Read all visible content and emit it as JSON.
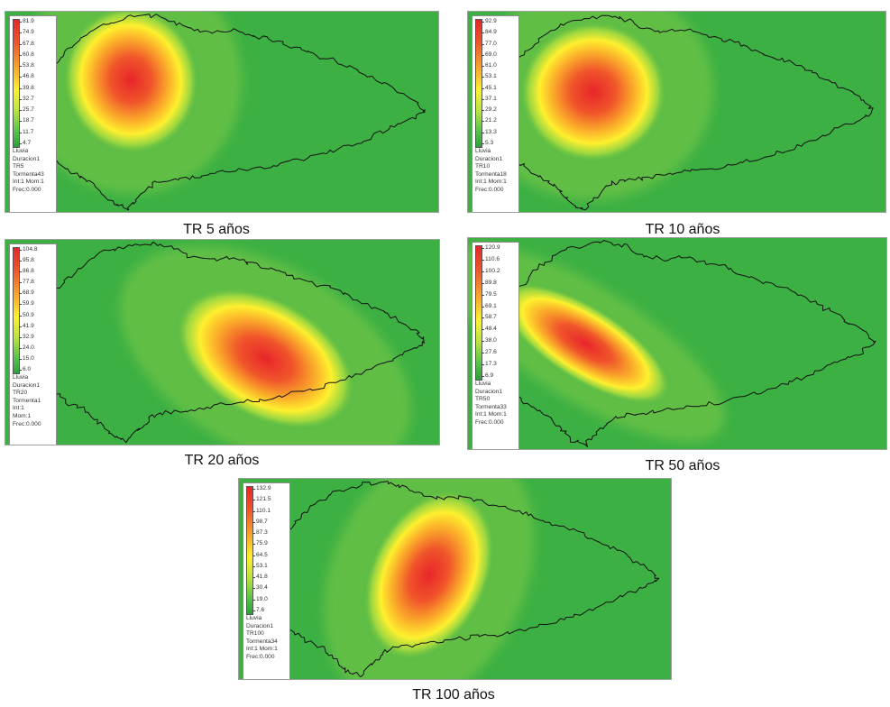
{
  "panels": [
    {
      "caption": "TR 5 años",
      "legend_values": [
        "81.9",
        "74.9",
        "67.8",
        "60.8",
        "53.8",
        "46.8",
        "39.8",
        "32.7",
        "25.7",
        "18.7",
        "11.7",
        "4.7"
      ],
      "legend_lines": [
        "Lluvia",
        "Duracion1",
        "TR5",
        "Tormenta43",
        "Int:1 Mom:1",
        "Frec:0.000"
      ]
    },
    {
      "caption": "TR 10 años",
      "legend_values": [
        "92.9",
        "84.9",
        "77.0",
        "69.0",
        "61.0",
        "53.1",
        "45.1",
        "37.1",
        "29.2",
        "21.2",
        "13.3",
        "5.3"
      ],
      "legend_lines": [
        "Lluvia",
        "Duracion1",
        "TR10",
        "Tormenta18",
        "Int:1 Mom:1",
        "Frec:0.000"
      ]
    },
    {
      "caption": "TR 20 años",
      "legend_values": [
        "104.8",
        "95.8",
        "86.8",
        "77.8",
        "68.9",
        "59.9",
        "50.9",
        "41.9",
        "32.9",
        "24.0",
        "15.0",
        "6.0"
      ],
      "legend_lines": [
        "Lluvia",
        "Duracion1",
        "TR20",
        "Tormenta1",
        "Int:1",
        "Mom:1",
        "Frec:0.000"
      ]
    },
    {
      "caption": "TR 50 años",
      "legend_values": [
        "120.9",
        "110.6",
        "100.2",
        "89.8",
        "79.5",
        "69.1",
        "58.7",
        "48.4",
        "38.0",
        "27.6",
        "17.3",
        "6.9"
      ],
      "legend_lines": [
        "Lluvia",
        "Duracion1",
        "TR50",
        "Tormenta33",
        "Int:1 Mom:1",
        "Frec:0.000"
      ]
    },
    {
      "caption": "TR 100 años",
      "legend_values": [
        "132.9",
        "121.5",
        "110.1",
        "98.7",
        "87.3",
        "75.9",
        "64.5",
        "53.1",
        "41.8",
        "30.4",
        "19.0",
        "7.6"
      ],
      "legend_lines": [
        "Lluvia",
        "Duracion1",
        "TR100",
        "Tormenta34",
        "Int:1 Mom:1",
        "Frec:0.000"
      ]
    }
  ],
  "colors": {
    "background": "#3cb043",
    "low": "#2f9e3b",
    "mid": "#fef02e",
    "high": "#e8252a",
    "outline": "#111111"
  }
}
